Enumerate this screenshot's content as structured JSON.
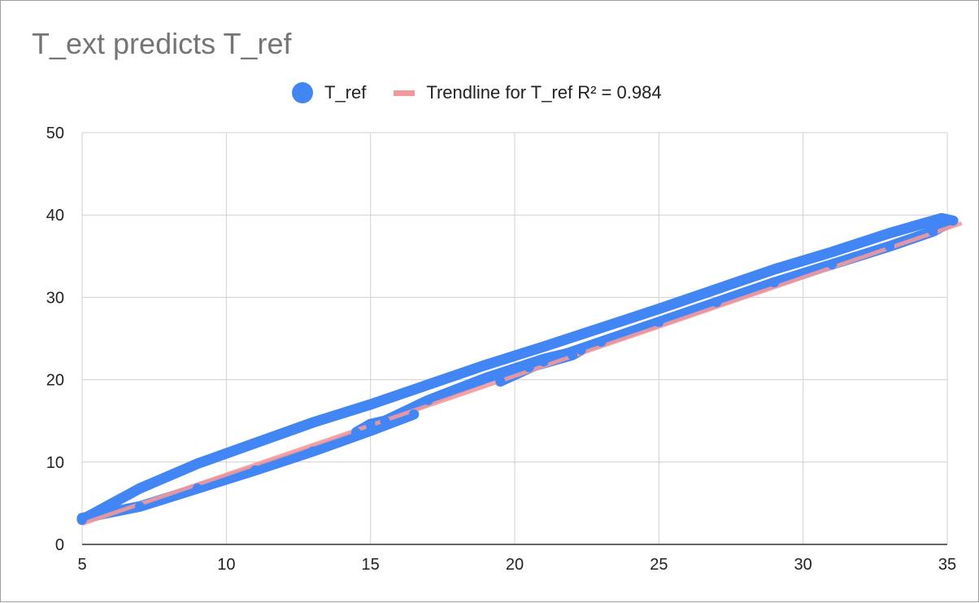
{
  "chart_data": {
    "type": "scatter",
    "title": "T_ext predicts T_ref",
    "xlabel": "",
    "ylabel": "",
    "xlim": [
      5,
      35
    ],
    "ylim": [
      0,
      50
    ],
    "x_ticks": [
      "5",
      "10",
      "15",
      "20",
      "25",
      "30",
      "35"
    ],
    "y_ticks": [
      "0",
      "10",
      "20",
      "30",
      "40",
      "50"
    ],
    "grid": true,
    "legend_position": "top",
    "series": [
      {
        "name": "T_ref",
        "kind": "points",
        "color": "#4285f4",
        "x": [
          5.0,
          7.0,
          9.0,
          11.0,
          13.0,
          15.0,
          17.0,
          19.0,
          21.0,
          23.0,
          25.0,
          27.0,
          29.0,
          31.0,
          33.0,
          34.8,
          35.2,
          34.5,
          33.0,
          31.0,
          29.0,
          27.0,
          25.0,
          23.0,
          21.0,
          19.5,
          20.5,
          22.0,
          22.3,
          21.0,
          19.0,
          17.0,
          15.5,
          14.5,
          15.0,
          16.5,
          15.0,
          13.0,
          11.0,
          9.0,
          7.0,
          5.0
        ],
        "y": [
          3.0,
          6.8,
          9.8,
          12.3,
          14.8,
          17.0,
          19.4,
          21.8,
          24.0,
          26.3,
          28.6,
          31.0,
          33.4,
          35.5,
          37.8,
          39.6,
          39.3,
          38.0,
          36.2,
          34.0,
          31.8,
          29.4,
          27.0,
          24.6,
          22.2,
          19.8,
          21.5,
          23.0,
          23.6,
          22.5,
          20.2,
          17.5,
          15.0,
          13.6,
          14.6,
          15.8,
          13.8,
          11.3,
          9.0,
          6.8,
          4.6,
          3.2
        ]
      },
      {
        "name": "Trendline for T_ref R² = 0.984",
        "kind": "trendline",
        "color": "#f4999a",
        "x": [
          5,
          35.5
        ],
        "y": [
          2.5,
          39.0
        ]
      }
    ]
  }
}
